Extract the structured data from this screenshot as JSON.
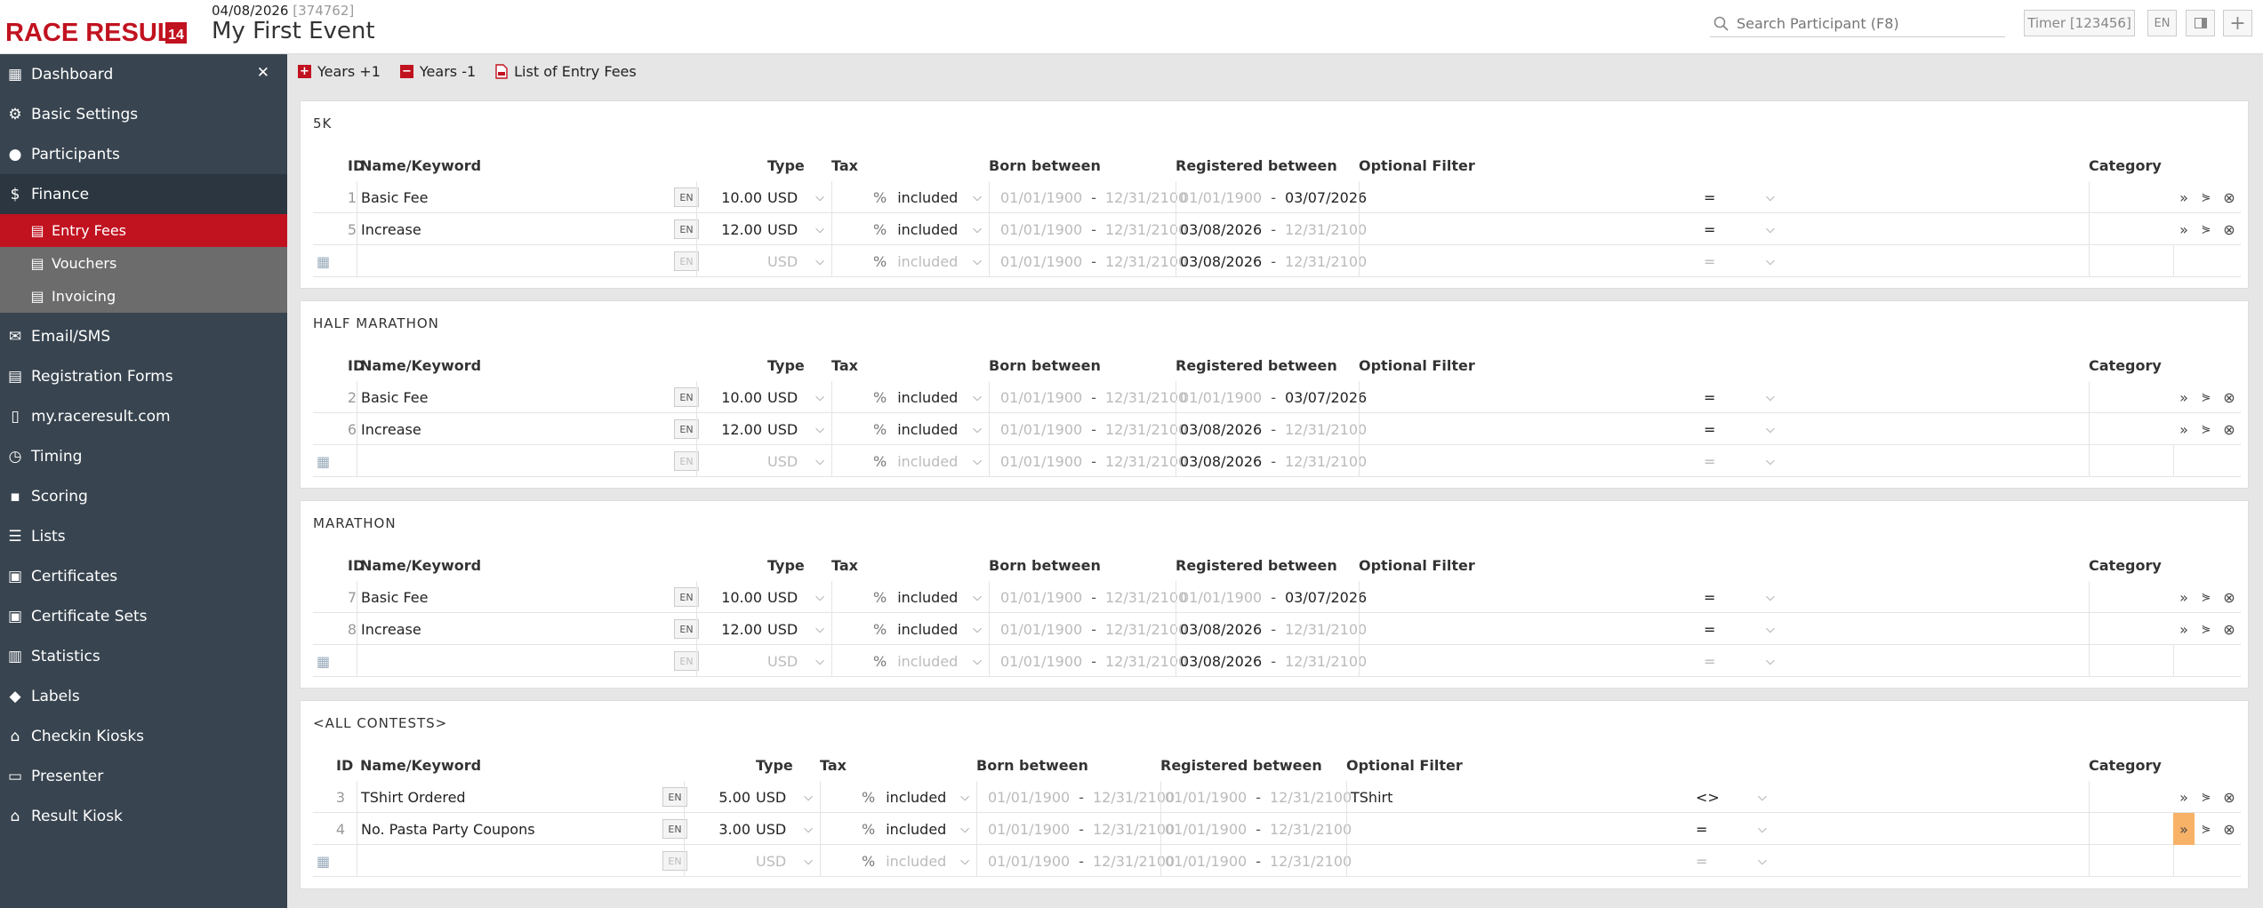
{
  "header": {
    "logo_text": "RACE RESULT",
    "logo_version": "14",
    "event_date": "04/08/2026",
    "event_id": "[374762]",
    "event_name": "My First Event",
    "search_placeholder": "Search Participant (F8)",
    "timer_label": "Timer [123456]",
    "lang": "EN"
  },
  "sidebar": {
    "items": [
      "Dashboard",
      "Basic Settings",
      "Participants",
      "Finance",
      "Email/SMS",
      "Registration Forms",
      "my.raceresult.com",
      "Timing",
      "Scoring",
      "Lists",
      "Certificates",
      "Certificate Sets",
      "Statistics",
      "Labels",
      "Checkin Kiosks",
      "Presenter",
      "Result Kiosk"
    ],
    "finance_sub": [
      "Entry Fees",
      "Vouchers",
      "Invoicing"
    ],
    "active": "Entry Fees"
  },
  "toolbar": {
    "years_plus": "Years +1",
    "years_minus": "Years -1",
    "list_fees": "List of Entry Fees"
  },
  "columns": {
    "id": "ID",
    "name": "Name/Keyword",
    "type": "Type",
    "tax": "Tax",
    "born": "Born between",
    "registered": "Registered between",
    "filter": "Optional Filter",
    "category": "Category"
  },
  "sections": [
    {
      "title": "5K",
      "rows": [
        {
          "id": "1",
          "name": "Basic Fee",
          "lang": "EN",
          "amount": "10.00",
          "currency": "USD",
          "tax": "%",
          "tax_mode": "included",
          "born_from": "01/01/1900",
          "born_to": "12/31/2100",
          "reg_from": "01/01/1900",
          "reg_to": "03/07/2026",
          "filter": "",
          "op": "="
        },
        {
          "id": "5",
          "name": "Increase",
          "lang": "EN",
          "amount": "12.00",
          "currency": "USD",
          "tax": "%",
          "tax_mode": "included",
          "born_from": "01/01/1900",
          "born_to": "12/31/2100",
          "reg_from": "03/08/2026",
          "reg_to": "12/31/2100",
          "filter": "",
          "op": "="
        }
      ],
      "new": {
        "lang": "EN",
        "currency": "USD",
        "tax": "%",
        "tax_mode": "included",
        "born_from": "01/01/1900",
        "born_to": "12/31/2100",
        "reg_from": "03/08/2026",
        "reg_to": "12/31/2100",
        "op": "="
      }
    },
    {
      "title": "HALF MARATHON",
      "rows": [
        {
          "id": "2",
          "name": "Basic Fee",
          "lang": "EN",
          "amount": "10.00",
          "currency": "USD",
          "tax": "%",
          "tax_mode": "included",
          "born_from": "01/01/1900",
          "born_to": "12/31/2100",
          "reg_from": "01/01/1900",
          "reg_to": "03/07/2026",
          "filter": "",
          "op": "="
        },
        {
          "id": "6",
          "name": "Increase",
          "lang": "EN",
          "amount": "12.00",
          "currency": "USD",
          "tax": "%",
          "tax_mode": "included",
          "born_from": "01/01/1900",
          "born_to": "12/31/2100",
          "reg_from": "03/08/2026",
          "reg_to": "12/31/2100",
          "filter": "",
          "op": "="
        }
      ],
      "new": {
        "lang": "EN",
        "currency": "USD",
        "tax": "%",
        "tax_mode": "included",
        "born_from": "01/01/1900",
        "born_to": "12/31/2100",
        "reg_from": "03/08/2026",
        "reg_to": "12/31/2100",
        "op": "="
      }
    },
    {
      "title": "MARATHON",
      "rows": [
        {
          "id": "7",
          "name": "Basic Fee",
          "lang": "EN",
          "amount": "10.00",
          "currency": "USD",
          "tax": "%",
          "tax_mode": "included",
          "born_from": "01/01/1900",
          "born_to": "12/31/2100",
          "reg_from": "01/01/1900",
          "reg_to": "03/07/2026",
          "filter": "",
          "op": "="
        },
        {
          "id": "8",
          "name": "Increase",
          "lang": "EN",
          "amount": "12.00",
          "currency": "USD",
          "tax": "%",
          "tax_mode": "included",
          "born_from": "01/01/1900",
          "born_to": "12/31/2100",
          "reg_from": "03/08/2026",
          "reg_to": "12/31/2100",
          "filter": "",
          "op": "="
        }
      ],
      "new": {
        "lang": "EN",
        "currency": "USD",
        "tax": "%",
        "tax_mode": "included",
        "born_from": "01/01/1900",
        "born_to": "12/31/2100",
        "reg_from": "03/08/2026",
        "reg_to": "12/31/2100",
        "op": "="
      }
    },
    {
      "title": "<ALL CONTESTS>",
      "rows": [
        {
          "id": "3",
          "name": "TShirt Ordered",
          "lang": "EN",
          "amount": "5.00",
          "currency": "USD",
          "tax": "%",
          "tax_mode": "included",
          "born_from": "01/01/1900",
          "born_to": "12/31/2100",
          "reg_from": "01/01/1900",
          "reg_to": "12/31/2100",
          "filter": "TShirt",
          "op": "<>"
        },
        {
          "id": "4",
          "name": "No. Pasta Party Coupons",
          "lang": "EN",
          "amount": "3.00",
          "currency": "USD",
          "tax": "%",
          "tax_mode": "included",
          "born_from": "01/01/1900",
          "born_to": "12/31/2100",
          "reg_from": "01/01/1900",
          "reg_to": "12/31/2100",
          "filter": "",
          "op": "="
        }
      ],
      "new": {
        "lang": "EN",
        "currency": "USD",
        "tax": "%",
        "tax_mode": "included",
        "born_from": "01/01/1900",
        "born_to": "12/31/2100",
        "reg_from": "01/01/1900",
        "reg_to": "12/31/2100",
        "op": "="
      }
    }
  ],
  "colors": {
    "brand": "#c1121f",
    "sidebar": "#38444f",
    "submenu": "#6c6c6c",
    "highlight": "#f7b267"
  }
}
